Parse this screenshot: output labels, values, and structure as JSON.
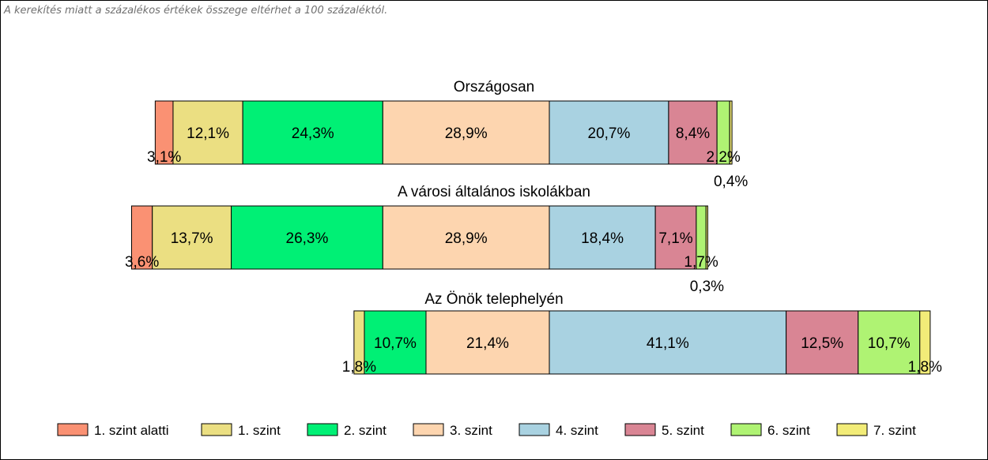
{
  "note": "A kerekítés miatt a  százalékos értékek összege eltérhet a 100 százaléktól.",
  "chart_data": {
    "type": "bar",
    "orientation": "horizontal",
    "stacked": true,
    "legend_position": "bottom",
    "colors": [
      "#FA9173",
      "#EBDF82",
      "#00F075",
      "#FDD5AF",
      "#A9D2E1",
      "#D98594",
      "#AFF373",
      "#F2EC78"
    ],
    "series_names": [
      "1. szint alatti",
      "1. szint",
      "2. szint",
      "3. szint",
      "4. szint",
      "5. szint",
      "6. szint",
      "7. szint"
    ],
    "groups": [
      {
        "title": "Országosan",
        "values": [
          3.1,
          12.1,
          24.3,
          28.9,
          20.7,
          8.4,
          2.2,
          0.4
        ],
        "labels": [
          "3,1%",
          "12,1%",
          "24,3%",
          "28,9%",
          "20,7%",
          "8,4%",
          "2,2%",
          "0,4%"
        ]
      },
      {
        "title": "A városi általános iskolákban",
        "values": [
          3.6,
          13.7,
          26.3,
          28.9,
          18.4,
          7.1,
          1.7,
          0.3
        ],
        "labels": [
          "3,6%",
          "13,7%",
          "26,3%",
          "28,9%",
          "18,4%",
          "7,1%",
          "1,7%",
          "0,3%"
        ]
      },
      {
        "title": "Az Önök telephelyén",
        "values": [
          0,
          1.8,
          10.7,
          21.4,
          41.1,
          12.5,
          10.7,
          1.8
        ],
        "labels": [
          "",
          "1,8%",
          "10,7%",
          "21,4%",
          "41,1%",
          "12,5%",
          "10,7%",
          "1,8%"
        ]
      }
    ]
  }
}
